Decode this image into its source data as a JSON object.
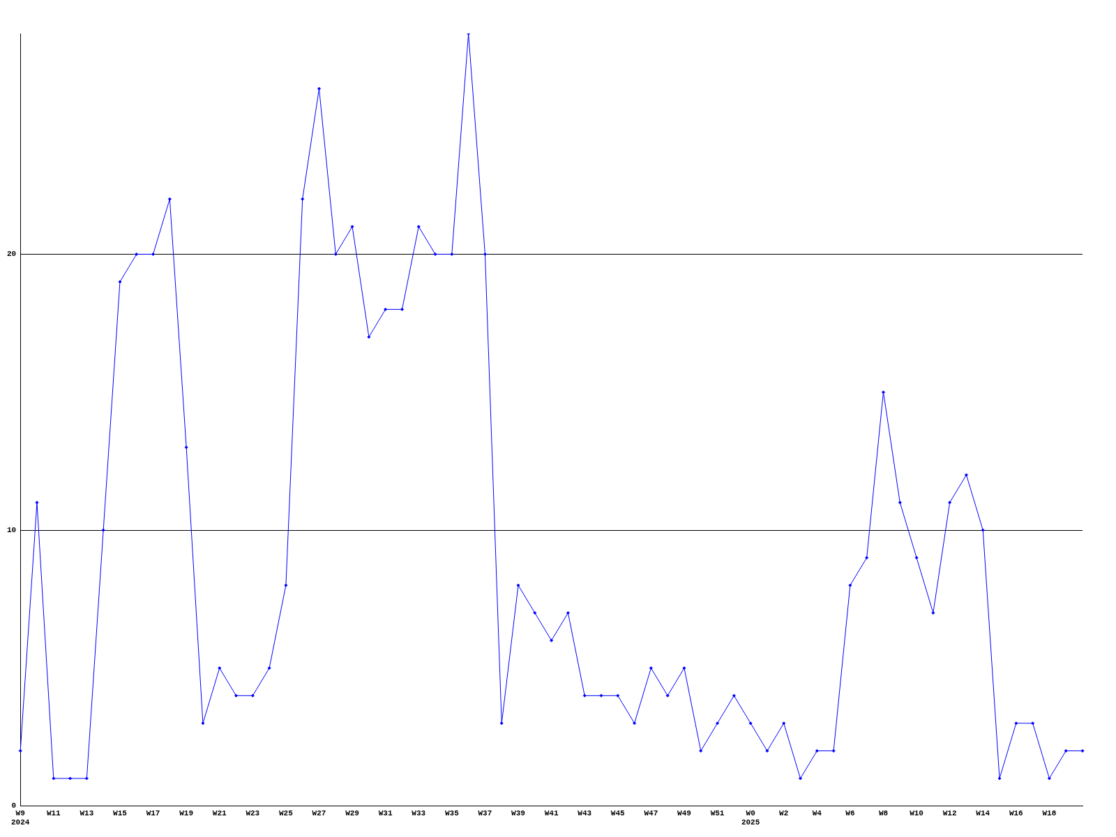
{
  "chart_data": {
    "type": "line",
    "categories": [
      "W9\n2024",
      null,
      "W11",
      null,
      "W13",
      null,
      "W15",
      null,
      "W17",
      null,
      "W19",
      null,
      "W21",
      null,
      "W23",
      null,
      "W25",
      null,
      "W27",
      null,
      "W29",
      null,
      "W31",
      null,
      "W33",
      null,
      "W35",
      null,
      "W37",
      null,
      "W39",
      null,
      "W41",
      null,
      "W43",
      null,
      "W45",
      null,
      "W47",
      null,
      "W49",
      null,
      "W51",
      null,
      "W0\n2025",
      null,
      "W2",
      null,
      "W4",
      null,
      "W6",
      null,
      "W8",
      null,
      "W10",
      null,
      "W12",
      null,
      "W14",
      null,
      "W16",
      null,
      "W18",
      null,
      null
    ],
    "series": [
      {
        "color": "#0000ff",
        "values": [
          2,
          11,
          1,
          1,
          1,
          10,
          19,
          20,
          20,
          22,
          13,
          3,
          5,
          4,
          4,
          5,
          8,
          22,
          26,
          20,
          21,
          17,
          18,
          18,
          21,
          20,
          20,
          28,
          20,
          3,
          8,
          7,
          6,
          7,
          4,
          4,
          4,
          3,
          5,
          4,
          5,
          2,
          3,
          4,
          3,
          2,
          3,
          1,
          2,
          2,
          8,
          9,
          15,
          11,
          9,
          7,
          11,
          12,
          10,
          1,
          3,
          3,
          1,
          2,
          2
        ]
      }
    ],
    "ylim": [
      0,
      28
    ],
    "yticks": [
      0,
      10,
      20
    ],
    "grid": "y",
    "marker": "diamond",
    "legend": false
  }
}
